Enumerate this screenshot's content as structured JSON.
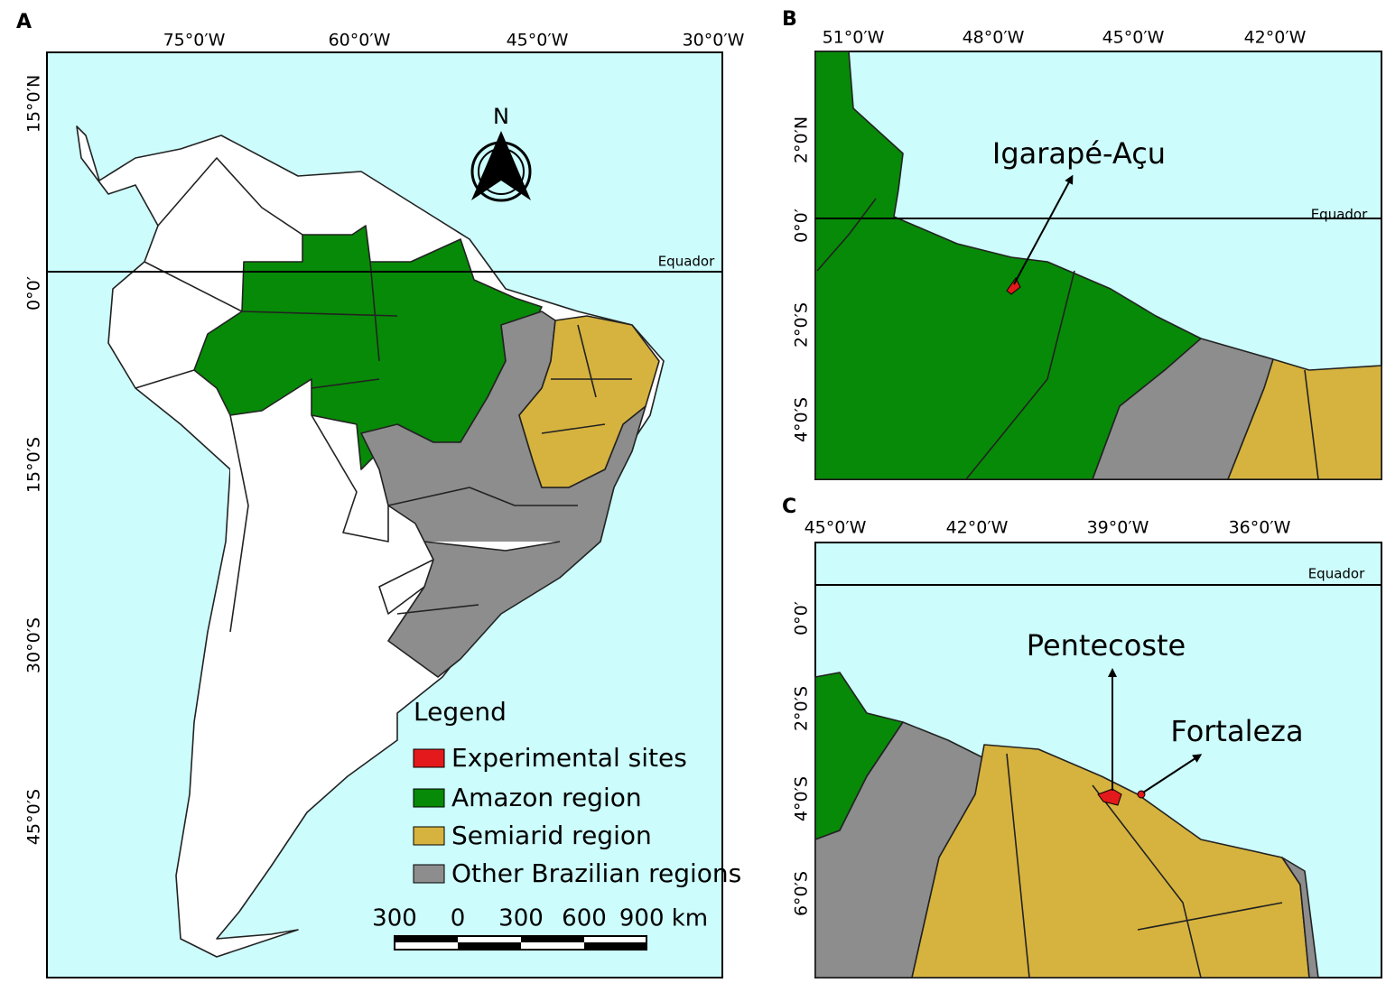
{
  "panels": [
    {
      "label": "A",
      "lon_labels": [
        "75°0′W",
        "60°0′W",
        "45°0′W",
        "30°0′W"
      ],
      "lat_labels": [
        "15°0′N",
        "0°0′",
        "15°0′S",
        "30°0′S",
        "45°0′S"
      ],
      "equator_label": "Equador",
      "north": "N",
      "legend": {
        "title": "Legend",
        "items": [
          "Experimental sites",
          "Amazon region",
          "Semiarid region",
          "Other Brazilian regions"
        ]
      },
      "scale_labels": [
        "300",
        "0",
        "300",
        "600",
        "900 km"
      ]
    },
    {
      "label": "B",
      "lon_labels": [
        "51°0′W",
        "48°0′W",
        "45°0′W",
        "42°0′W"
      ],
      "lat_labels": [
        "2°0′N",
        "0°0′",
        "2°0′S",
        "4°0′S"
      ],
      "equator_label": "Equador",
      "annotations": [
        "Igarapé-Açu"
      ]
    },
    {
      "label": "C",
      "lon_labels": [
        "45°0′W",
        "42°0′W",
        "39°0′W",
        "36°0′W"
      ],
      "lat_labels": [
        "0°0′",
        "2°0′S",
        "4°0′S",
        "6°0′S"
      ],
      "equator_label": "Equador",
      "annotations": [
        "Pentecoste",
        "Fortaleza"
      ]
    }
  ]
}
